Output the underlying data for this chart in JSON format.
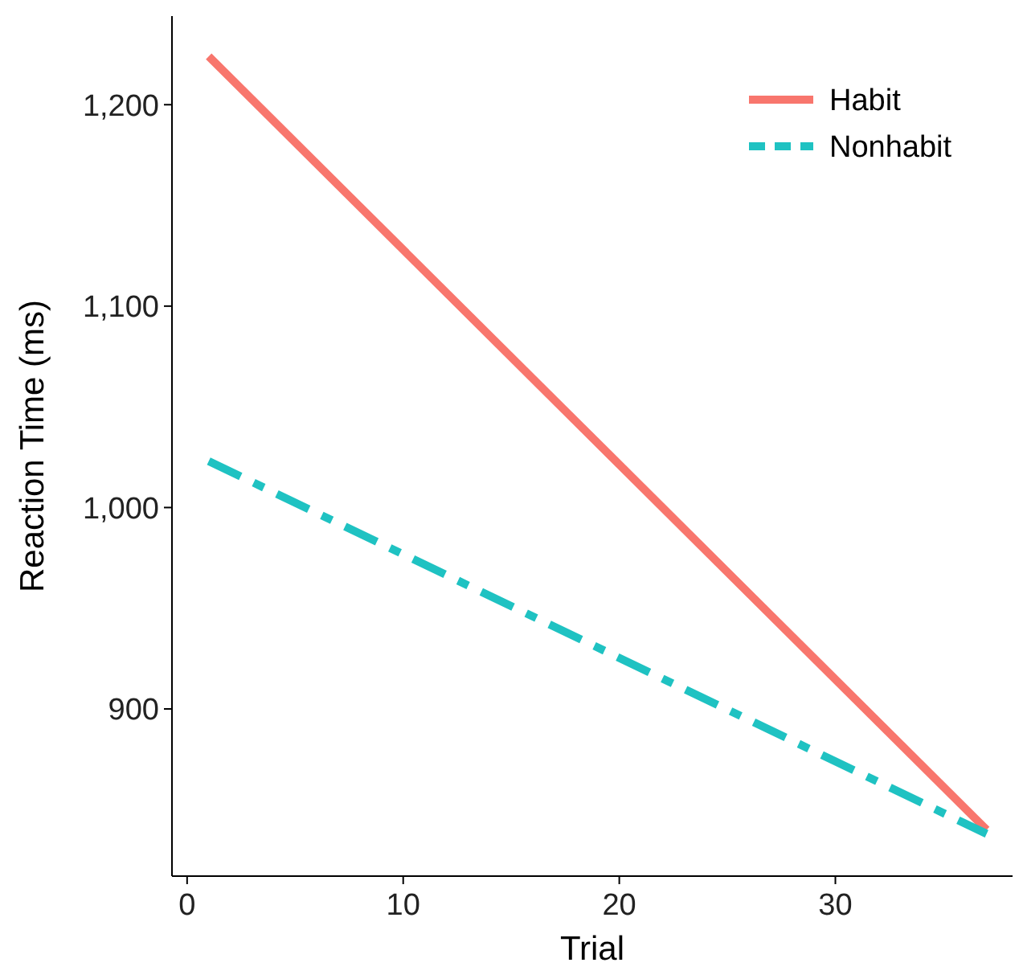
{
  "chart_data": {
    "type": "line",
    "xlabel": "Trial",
    "ylabel": "Reaction Time (ms)",
    "xlim": [
      -0.7,
      38.2
    ],
    "xticks": [
      0,
      10,
      20,
      30
    ],
    "ylim": [
      817,
      1244
    ],
    "yticks": [
      900,
      {
        "value": 1000,
        "label": "1,000"
      },
      {
        "value": 1100,
        "label": "1,100"
      },
      {
        "value": 1200,
        "label": "1,200"
      }
    ],
    "legend": "top right",
    "grid": false,
    "x": [
      1,
      37
    ],
    "series": [
      {
        "name": "Habit",
        "color": "#f8766d",
        "values": [
          1224,
          840
        ],
        "line_style": "solid"
      },
      {
        "name": "Nonhabit",
        "color": "#1fc2c2",
        "values": [
          1023,
          838
        ],
        "line_style": "dashed"
      }
    ]
  }
}
